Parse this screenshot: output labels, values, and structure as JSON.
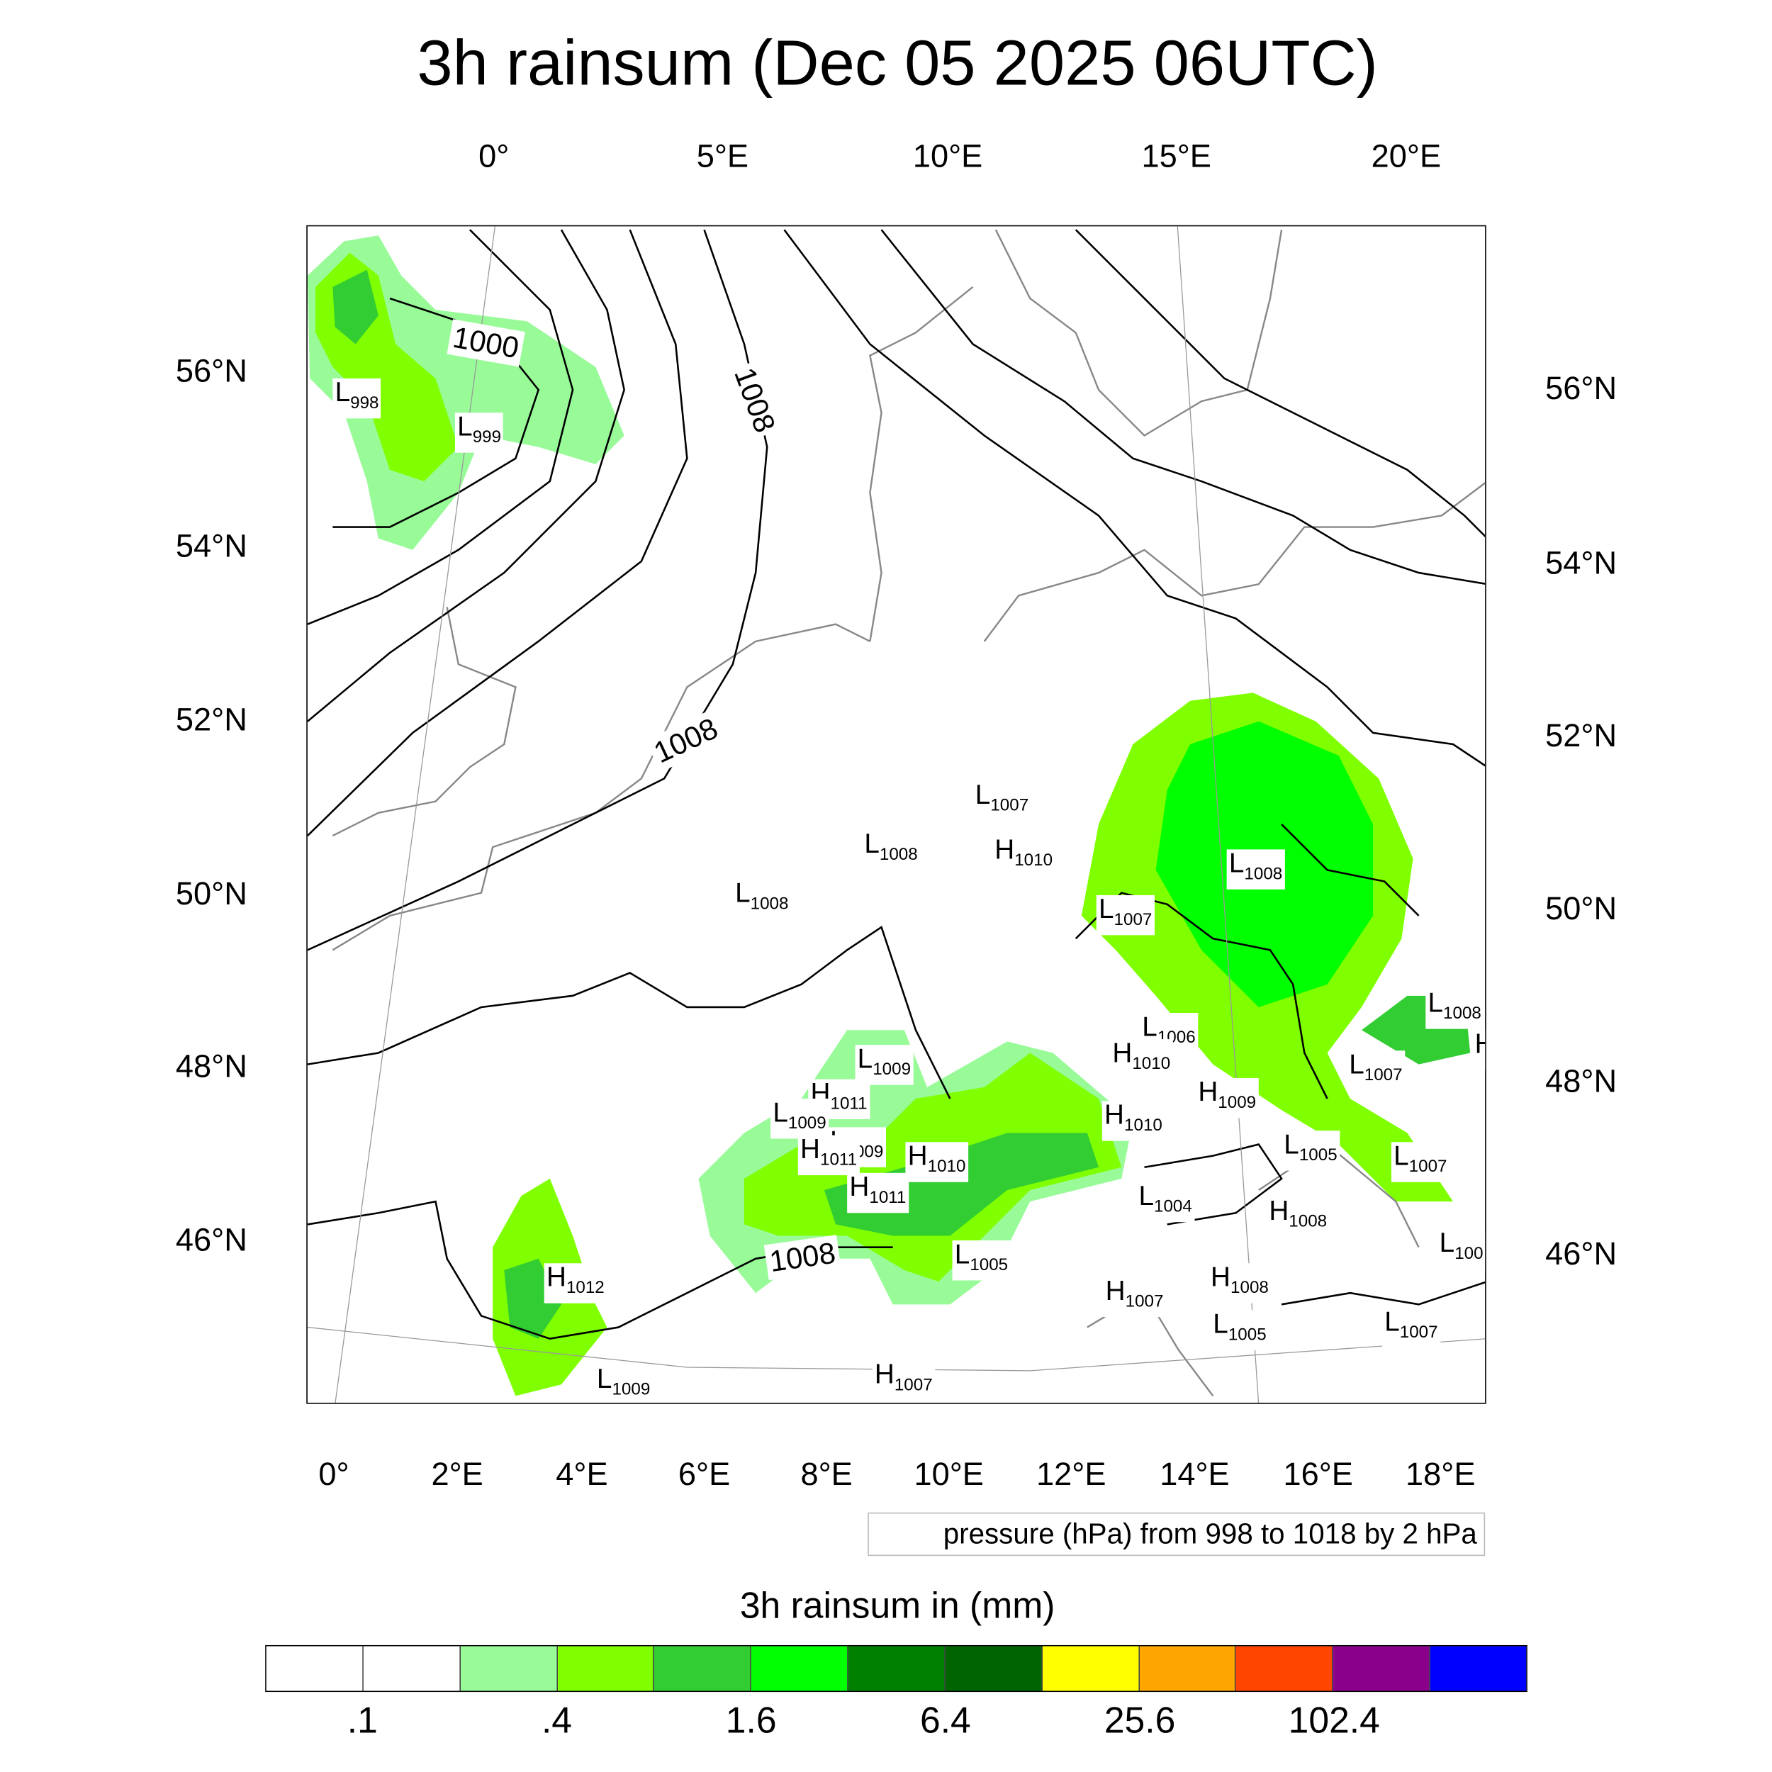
{
  "title": "3h rainsum (Dec 05 2025 06UTC)",
  "axes": {
    "top_lon": [
      "0°",
      "5°E",
      "10°E",
      "15°E",
      "20°E"
    ],
    "bottom_lon": [
      "0°",
      "2°E",
      "4°E",
      "6°E",
      "8°E",
      "10°E",
      "12°E",
      "14°E",
      "16°E",
      "18°E"
    ],
    "left_lat": [
      "56°N",
      "54°N",
      "52°N",
      "50°N",
      "48°N",
      "46°N"
    ],
    "right_lat": [
      "56°N",
      "54°N",
      "52°N",
      "50°N",
      "48°N",
      "46°N"
    ]
  },
  "contour_labels": [
    "1000",
    "1008",
    "1008",
    "1008"
  ],
  "pressure_centers": [
    {
      "t": "L",
      "v": "998"
    },
    {
      "t": "L",
      "v": "999"
    },
    {
      "t": "L",
      "v": "1007"
    },
    {
      "t": "L",
      "v": "1008"
    },
    {
      "t": "H",
      "v": "1010"
    },
    {
      "t": "L",
      "v": "1008"
    },
    {
      "t": "L",
      "v": "1008"
    },
    {
      "t": "L",
      "v": "1007"
    },
    {
      "t": "L",
      "v": "1008"
    },
    {
      "t": "L",
      "v": "1006"
    },
    {
      "t": "H",
      "v": "1010"
    },
    {
      "t": "L",
      "v": "1009"
    },
    {
      "t": "H",
      "v": "1011"
    },
    {
      "t": "L",
      "v": "1009"
    },
    {
      "t": "L",
      "v": "1009"
    },
    {
      "t": "H",
      "v": "1011"
    },
    {
      "t": "H",
      "v": "1010"
    },
    {
      "t": "H",
      "v": "1011"
    },
    {
      "t": "H",
      "v": "1010"
    },
    {
      "t": "H",
      "v": "1009"
    },
    {
      "t": "L",
      "v": "1007"
    },
    {
      "t": "L",
      "v": "1005"
    },
    {
      "t": "L",
      "v": "1007"
    },
    {
      "t": "L",
      "v": "1004"
    },
    {
      "t": "H",
      "v": "1008"
    },
    {
      "t": "L",
      "v": "1005"
    },
    {
      "t": "H",
      "v": "1012"
    },
    {
      "t": "H",
      "v": "1007"
    },
    {
      "t": "H",
      "v": "1008"
    },
    {
      "t": "L",
      "v": "1005"
    },
    {
      "t": "L",
      "v": "1007"
    },
    {
      "t": "L",
      "v": "1009"
    },
    {
      "t": "H",
      "v": "1007"
    },
    {
      "t": "L",
      "v": "100"
    },
    {
      "t": "H",
      "v": ""
    }
  ],
  "pressure_note": "pressure (hPa) from 998 to 1018 by 2 hPa",
  "colorbar": {
    "title": "3h rainsum in (mm)",
    "colors": [
      "#ffffff",
      "#ffffff",
      "#98fb98",
      "#7fff00",
      "#32cd32",
      "#00ff00",
      "#008000",
      "#006400",
      "#ffff00",
      "#ffa500",
      "#ff4500",
      "#8b008b",
      "#0000ff"
    ],
    "labels": [
      ".1",
      ".4",
      "1.6",
      "6.4",
      "25.6",
      "102.4"
    ]
  }
}
